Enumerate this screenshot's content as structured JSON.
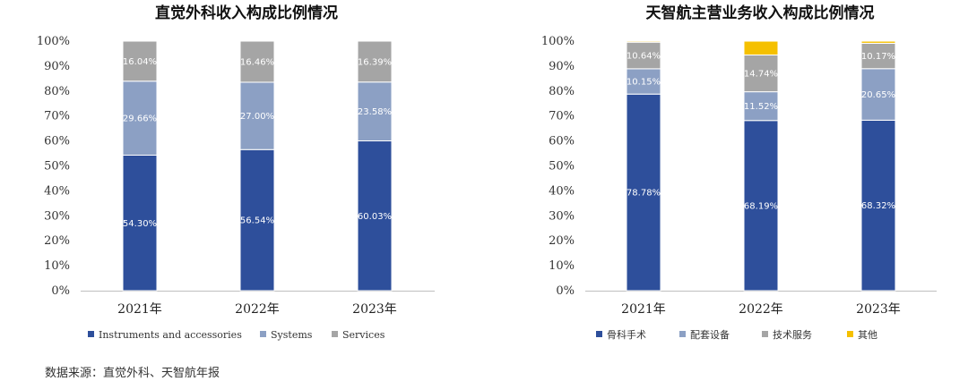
{
  "source_note": "数据来源：直觉外科、天智航年报",
  "chart_data": [
    {
      "type": "bar",
      "stacked": true,
      "title": "直觉外科收入构成比例情况",
      "categories": [
        "2021年",
        "2022年",
        "2023年"
      ],
      "ylim": [
        0,
        100
      ],
      "yticks": [
        "0%",
        "10%",
        "20%",
        "30%",
        "40%",
        "50%",
        "60%",
        "70%",
        "80%",
        "90%",
        "100%"
      ],
      "legend_position": "bottom",
      "series": [
        {
          "name": "Instruments and accessories",
          "color": "#2e4f9b",
          "values": [
            54.3,
            56.54,
            60.03
          ],
          "labels": [
            "54.30%",
            "56.54%",
            "60.03%"
          ]
        },
        {
          "name": "Systems",
          "color": "#8ca0c4",
          "values": [
            29.66,
            27.0,
            23.58
          ],
          "labels": [
            "29.66%",
            "27.00%",
            "23.58%"
          ]
        },
        {
          "name": "Services",
          "color": "#a5a5a5",
          "values": [
            16.04,
            16.46,
            16.39
          ],
          "labels": [
            "16.04%",
            "16.46%",
            "16.39%"
          ]
        }
      ]
    },
    {
      "type": "bar",
      "stacked": true,
      "title": "天智航主营业务收入构成比例情况",
      "categories": [
        "2021年",
        "2022年",
        "2023年"
      ],
      "ylim": [
        0,
        100
      ],
      "yticks": [
        "0%",
        "10%",
        "20%",
        "30%",
        "40%",
        "50%",
        "60%",
        "70%",
        "80%",
        "90%",
        "100%"
      ],
      "legend_position": "bottom",
      "series": [
        {
          "name": "骨科手术",
          "color": "#2e4f9b",
          "values": [
            78.78,
            68.19,
            68.32
          ],
          "labels": [
            "78.78%",
            "68.19%",
            "68.32%"
          ]
        },
        {
          "name": "配套设备",
          "color": "#8ca0c4",
          "values": [
            10.15,
            11.52,
            20.65
          ],
          "labels": [
            "10.15%",
            "11.52%",
            "20.65%"
          ]
        },
        {
          "name": "技术服务",
          "color": "#a5a5a5",
          "values": [
            10.64,
            14.74,
            10.17
          ],
          "labels": [
            "10.64%",
            "14.74%",
            "10.17%"
          ]
        },
        {
          "name": "其他",
          "color": "#f5c000",
          "values": [
            0.43,
            5.55,
            0.86
          ],
          "labels": [
            "",
            "",
            ""
          ]
        }
      ]
    }
  ]
}
